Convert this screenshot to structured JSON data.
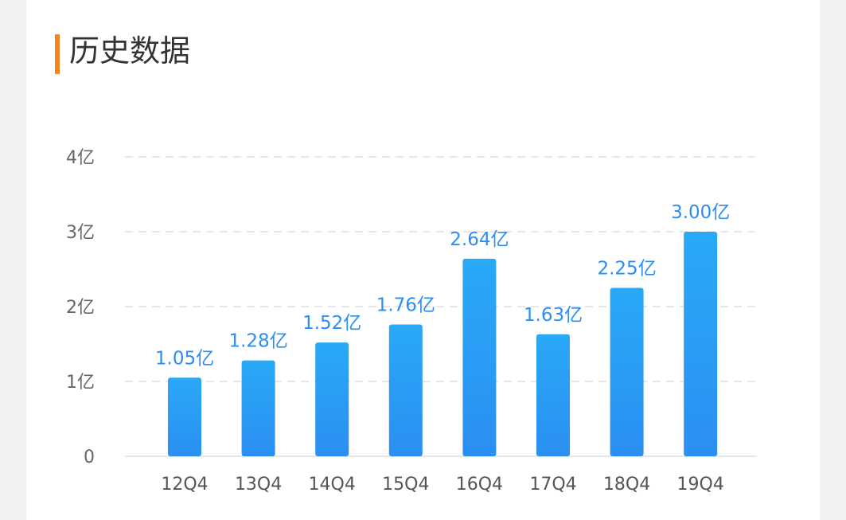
{
  "header": {
    "title": "历史数据"
  },
  "colors": {
    "accent": "#f5841f",
    "bar_top": "#29a9f6",
    "bar_bottom": "#2b8ff2",
    "label": "#2b8ff2",
    "grid": "#e6e6e6"
  },
  "chart_data": {
    "type": "bar",
    "categories": [
      "12Q4",
      "13Q4",
      "14Q4",
      "15Q4",
      "16Q4",
      "17Q4",
      "18Q4",
      "19Q4"
    ],
    "values": [
      1.05,
      1.28,
      1.52,
      1.76,
      2.64,
      1.63,
      2.25,
      3.0
    ],
    "data_labels": [
      "1.05亿",
      "1.28亿",
      "1.52亿",
      "1.76亿",
      "2.64亿",
      "1.63亿",
      "2.25亿",
      "3.00亿"
    ],
    "y_ticks": [
      0,
      1,
      2,
      3,
      4
    ],
    "y_tick_labels": [
      "0",
      "1亿",
      "2亿",
      "3亿",
      "4亿"
    ],
    "ylim": [
      0,
      4
    ],
    "grid": true,
    "legend": false,
    "title": "",
    "xlabel": "",
    "ylabel": ""
  }
}
